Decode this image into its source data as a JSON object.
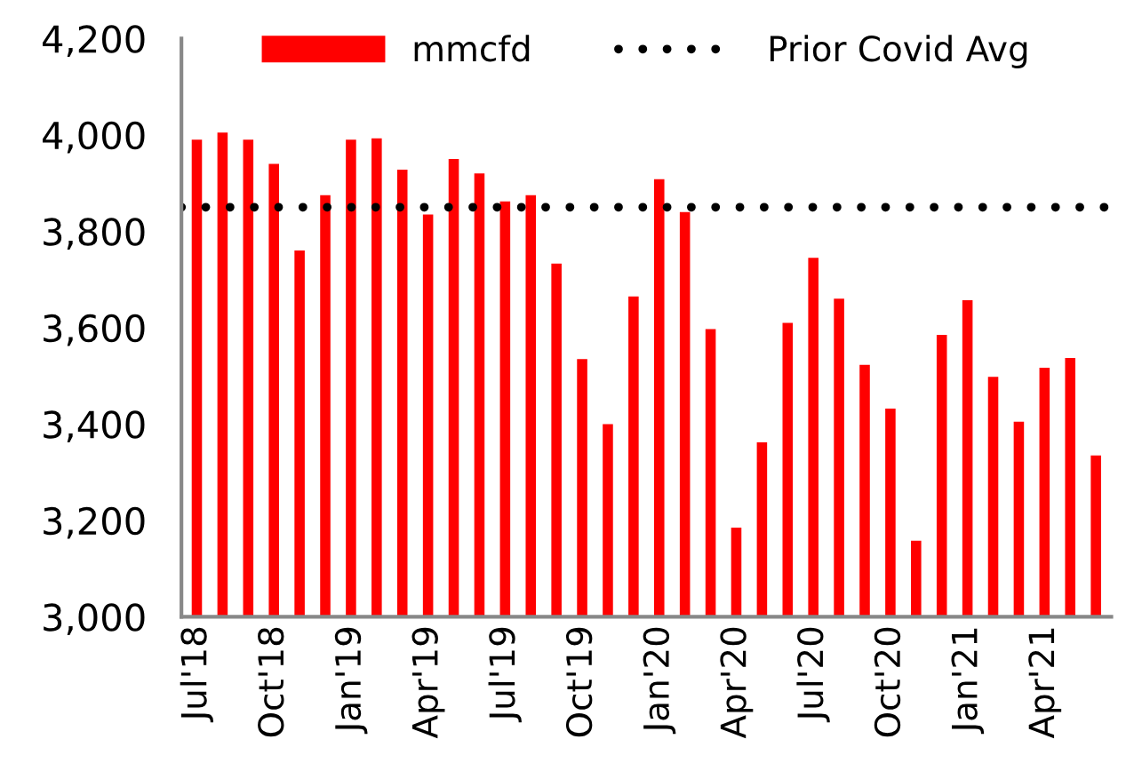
{
  "chart_data": {
    "type": "bar",
    "categories": [
      "Jul'18",
      null,
      null,
      "Oct'18",
      null,
      null,
      "Jan'19",
      null,
      null,
      "Apr'19",
      null,
      null,
      "Jul'19",
      null,
      null,
      "Oct'19",
      null,
      null,
      "Jan'20",
      null,
      null,
      "Apr'20",
      null,
      null,
      "Jul'20",
      null,
      null,
      "Oct'20",
      null,
      null,
      "Jan'21",
      null,
      null,
      "Apr'21",
      null,
      null
    ],
    "series": [
      {
        "name": "mmcfd",
        "color": "#ff0000",
        "values": [
          3990,
          4005,
          3990,
          3940,
          3760,
          3875,
          3990,
          3993,
          3928,
          3835,
          3950,
          3920,
          3862,
          3875,
          3733,
          3535,
          3400,
          3665,
          3908,
          3840,
          3597,
          3185,
          3362,
          3610,
          3745,
          3660,
          3523,
          3432,
          3158,
          3585,
          3657,
          3498,
          3405,
          3517,
          3537,
          3335
        ]
      }
    ],
    "ref_lines": [
      {
        "axis": "y",
        "value": 3850,
        "label": "Prior Covid Avg",
        "color": "#000000",
        "line_style": "dotted"
      }
    ],
    "ylim": [
      3000,
      4200
    ],
    "yticks": [
      {
        "value": 3000,
        "label": "3,000"
      },
      {
        "value": 3200,
        "label": "3,200"
      },
      {
        "value": 3400,
        "label": "3,400"
      },
      {
        "value": 3600,
        "label": "3,600"
      },
      {
        "value": 3800,
        "label": "3,800"
      },
      {
        "value": 4000,
        "label": "4,000"
      },
      {
        "value": 4200,
        "label": "4,200"
      }
    ],
    "legend": "top",
    "grid": false
  }
}
